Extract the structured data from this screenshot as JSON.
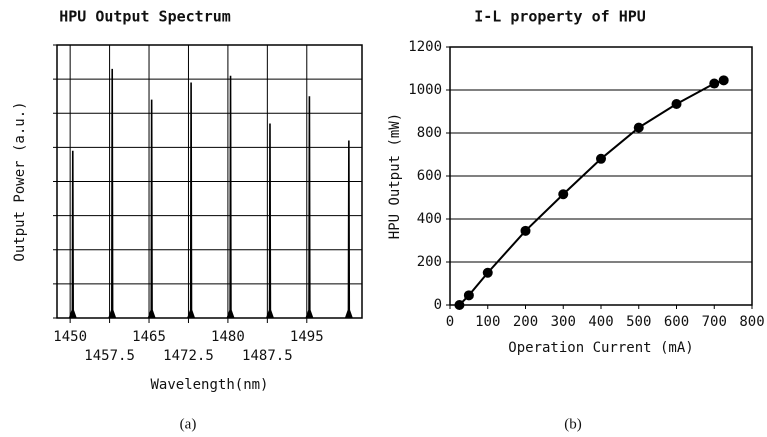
{
  "charts": [
    {
      "chart_data": {
        "type": "spectrum",
        "title": "HPU Output Spectrum",
        "x_label": "Wavelength(nm)",
        "y_label": "Output Power (a.u.)",
        "caption": "(a)",
        "x": [
          1450.5,
          1458,
          1465.5,
          1473,
          1480.5,
          1488,
          1495.5,
          1503
        ],
        "values": [
          4.9,
          7.3,
          6.4,
          6.9,
          7.1,
          5.7,
          6.5,
          5.2
        ],
        "color": "#000000",
        "xlim": [
          1447.5,
          1505.5
        ],
        "xticks": [
          1450,
          1457.5,
          1465,
          1472.5,
          1480,
          1487.5,
          1495
        ],
        "ylim": [
          0,
          8
        ],
        "yticks": [
          0,
          1,
          2,
          3,
          4,
          5,
          6,
          7,
          8
        ],
        "grid": true,
        "show_ytick_labels": false
      }
    },
    {
      "chart_data": {
        "type": "line",
        "title": "I-L property of HPU",
        "x_label": "Operation Current (mA)",
        "y_label": "HPU Output (mW)",
        "caption": "(b)",
        "x": [
          25,
          50,
          100,
          200,
          300,
          400,
          500,
          600,
          700,
          725
        ],
        "values": [
          0,
          45,
          150,
          345,
          515,
          680,
          825,
          935,
          1030,
          1045
        ],
        "color": "#000000",
        "xlim": [
          0,
          800
        ],
        "xticks": [
          0,
          100,
          200,
          300,
          400,
          500,
          600,
          700,
          800
        ],
        "ylim": [
          0,
          1200
        ],
        "yticks": [
          0,
          200,
          400,
          600,
          800,
          1000,
          1200
        ],
        "grid": true,
        "show_ytick_labels": true
      }
    }
  ]
}
